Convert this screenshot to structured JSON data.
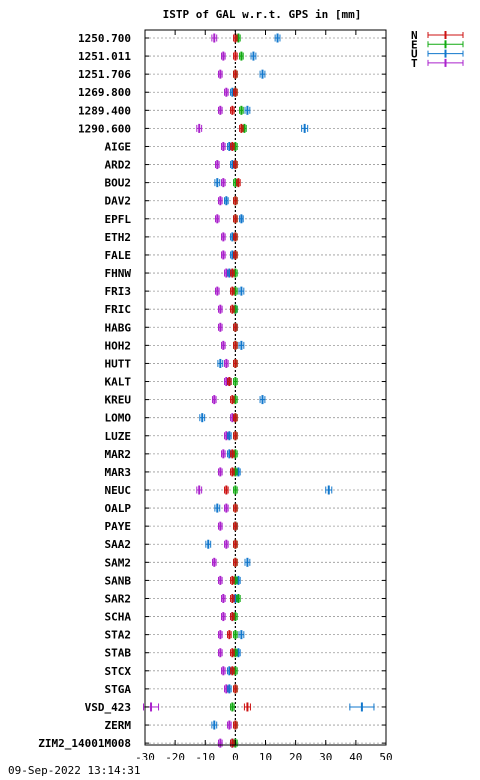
{
  "chart_data": {
    "type": "scatter",
    "title": "ISTP of GAL w.r.t. GPS in [mm]",
    "xlim": [
      -30,
      50
    ],
    "xticks": [
      -30,
      -20,
      -10,
      0,
      10,
      20,
      30,
      40,
      50
    ],
    "categories": [
      "1250.700",
      "1251.011",
      "1251.706",
      "1269.800",
      "1289.400",
      "1290.600",
      "AIGE",
      "ARD2",
      "BOU2",
      "DAV2",
      "EPFL",
      "ETH2",
      "FALE",
      "FHNW",
      "FRI3",
      "FRIC",
      "HABG",
      "HOH2",
      "HUTT",
      "KALT",
      "KREU",
      "LOMO",
      "LUZE",
      "MAR2",
      "MAR3",
      "NEUC",
      "OALP",
      "PAYE",
      "SAA2",
      "SAM2",
      "SANB",
      "SAR2",
      "SCHA",
      "STA2",
      "STAB",
      "STCX",
      "STGA",
      "VSD_423",
      "ZERM",
      "ZIM2_14001M008"
    ],
    "legend_position": "top-right",
    "grid": "horizontal-dotted",
    "series": [
      {
        "name": "N",
        "color": "#cc1111",
        "values": [
          0,
          0,
          0,
          0,
          -1,
          2,
          -1,
          0,
          1,
          0,
          0,
          0,
          0,
          -1,
          -1,
          -1,
          0,
          0,
          0,
          -2,
          -1,
          0,
          0,
          -1,
          -1,
          -3,
          0,
          0,
          0,
          0,
          -1,
          -1,
          -1,
          -2,
          -1,
          -1,
          0,
          4,
          0,
          -1
        ],
        "errors": [
          0.6,
          0.6,
          0.6,
          0.6,
          0.6,
          0.6,
          0.6,
          0.6,
          0.6,
          0.6,
          0.6,
          0.6,
          0.6,
          0.6,
          0.6,
          0.6,
          0.6,
          0.6,
          0.6,
          0.6,
          0.6,
          0.6,
          0.6,
          0.6,
          0.6,
          0.6,
          0.6,
          0.6,
          0.6,
          0.6,
          0.6,
          0.6,
          0.6,
          0.6,
          0.6,
          0.6,
          0.6,
          1.0,
          0.6,
          0.6
        ]
      },
      {
        "name": "E",
        "color": "#11aa11",
        "values": [
          1,
          2,
          0,
          0,
          2,
          3,
          0,
          0,
          0,
          0,
          0,
          0,
          0,
          0,
          0,
          0,
          0,
          0,
          0,
          0,
          0,
          0,
          0,
          0,
          0,
          0,
          0,
          0,
          0,
          0,
          0,
          1,
          0,
          0,
          0,
          0,
          0,
          -1,
          0,
          0
        ],
        "errors": [
          0.6,
          0.6,
          0.6,
          0.6,
          0.6,
          0.6,
          0.6,
          0.6,
          0.6,
          0.6,
          0.6,
          0.6,
          0.6,
          0.6,
          0.6,
          0.6,
          0.6,
          0.6,
          0.6,
          0.6,
          0.6,
          0.6,
          0.6,
          0.6,
          0.6,
          0.6,
          0.6,
          0.6,
          0.6,
          0.6,
          0.6,
          0.6,
          0.6,
          0.6,
          0.6,
          0.6,
          0.6,
          0.6,
          0.6,
          0.6
        ]
      },
      {
        "name": "U",
        "color": "#1177cc",
        "values": [
          14,
          6,
          9,
          -1,
          4,
          23,
          -2,
          -1,
          -6,
          -3,
          2,
          -1,
          -1,
          -2,
          2,
          0,
          0,
          2,
          -5,
          -2,
          9,
          -11,
          -2,
          -2,
          1,
          31,
          -6,
          0,
          -9,
          4,
          1,
          0,
          -1,
          2,
          1,
          -2,
          -2,
          42,
          -7,
          -1
        ],
        "errors": [
          0.8,
          0.8,
          0.8,
          0.6,
          0.8,
          1.0,
          0.6,
          0.6,
          0.8,
          0.6,
          0.6,
          0.6,
          0.6,
          0.6,
          0.8,
          0.6,
          0.6,
          0.8,
          0.8,
          0.6,
          0.8,
          0.8,
          0.6,
          0.6,
          0.6,
          1.0,
          0.8,
          0.6,
          0.8,
          0.8,
          0.6,
          0.6,
          0.6,
          0.8,
          0.6,
          0.6,
          0.6,
          4.0,
          0.8,
          0.6
        ]
      },
      {
        "name": "T",
        "color": "#aa22cc",
        "values": [
          -7,
          -4,
          -5,
          -3,
          -5,
          -12,
          -4,
          -6,
          -4,
          -5,
          -6,
          -4,
          -4,
          -3,
          -6,
          -5,
          -5,
          -4,
          -3,
          -3,
          -7,
          -1,
          -3,
          -4,
          -5,
          -12,
          -3,
          -5,
          -3,
          -7,
          -5,
          -4,
          -4,
          -5,
          -5,
          -4,
          -3,
          -28,
          -2,
          -5
        ],
        "errors": [
          0.8,
          0.6,
          0.6,
          0.6,
          0.6,
          0.8,
          0.6,
          0.6,
          0.6,
          0.6,
          0.6,
          0.6,
          0.6,
          0.6,
          0.6,
          0.6,
          0.6,
          0.6,
          0.6,
          0.6,
          0.6,
          0.6,
          0.6,
          0.6,
          0.6,
          0.8,
          0.6,
          0.6,
          0.6,
          0.6,
          0.6,
          0.6,
          0.6,
          0.6,
          0.6,
          0.6,
          0.6,
          2.5,
          0.6,
          0.6
        ]
      }
    ]
  },
  "timestamp": "09-Sep-2022 13:14:31"
}
